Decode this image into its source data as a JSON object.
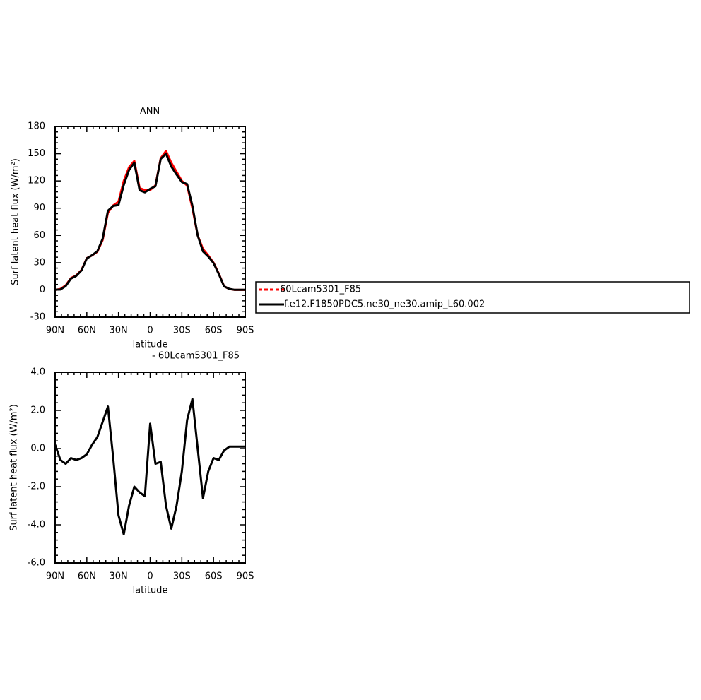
{
  "chart_data": [
    {
      "type": "line",
      "title": "ANN",
      "xlabel": "latitude",
      "ylabel": "Surf latent heat flux (W/m²)",
      "x": [
        90,
        85,
        80,
        75,
        70,
        65,
        60,
        55,
        50,
        45,
        40,
        35,
        30,
        25,
        20,
        15,
        10,
        5,
        0,
        -5,
        -10,
        -15,
        -20,
        -25,
        -30,
        -35,
        -40,
        -45,
        -50,
        -55,
        -60,
        -65,
        -70,
        -75,
        -80,
        -85,
        -90
      ],
      "series": [
        {
          "name": "60Lcam5301_F85",
          "color": "#ff0000",
          "values": [
            0,
            1,
            5,
            13,
            16,
            22,
            35,
            38,
            42,
            55,
            85,
            93,
            97,
            120,
            135,
            142,
            112,
            110,
            110,
            115,
            145,
            153,
            140,
            130,
            120,
            115,
            90,
            60,
            45,
            38,
            30,
            18,
            4,
            1,
            0,
            0,
            0
          ]
        },
        {
          "name": "f.e12.F1850PDC5.ne30_ne30.amip_L60.002",
          "color": "#000000",
          "values": [
            0.2,
            0.4,
            4.2,
            12.5,
            15.4,
            21.5,
            34.7,
            38.2,
            42.6,
            56.4,
            87.2,
            92.5,
            93.5,
            115.5,
            132,
            140,
            109.7,
            107.5,
            111.3,
            114.2,
            144.3,
            150,
            135.8,
            127,
            118.8,
            116.5,
            92.6,
            60,
            42.4,
            36.8,
            29.5,
            17.4,
            3.9,
            1.1,
            0.1,
            0.1,
            0.1
          ]
        }
      ],
      "xlim": [
        90,
        -90
      ],
      "xticks": [
        {
          "value": 90,
          "label": "90N"
        },
        {
          "value": 60,
          "label": "60N"
        },
        {
          "value": 30,
          "label": "30N"
        },
        0,
        {
          "value": -30,
          "label": "30S"
        },
        {
          "value": -60,
          "label": "60S"
        },
        {
          "value": -90,
          "label": "90S"
        }
      ],
      "ylim": [
        -30,
        180
      ],
      "yticks": [
        -30,
        0,
        30,
        60,
        90,
        120,
        150,
        180
      ]
    },
    {
      "type": "line",
      "title": "- 60Lcam5301_F85",
      "xlabel": "latitude",
      "ylabel": "Surf latent heat flux (W/m²)",
      "x": [
        90,
        85,
        80,
        75,
        70,
        65,
        60,
        55,
        50,
        45,
        40,
        35,
        30,
        25,
        20,
        15,
        10,
        5,
        0,
        -5,
        -10,
        -15,
        -20,
        -25,
        -30,
        -35,
        -40,
        -45,
        -50,
        -55,
        -60,
        -65,
        -70,
        -75,
        -80,
        -85,
        -90
      ],
      "series": [
        {
          "color": "#000000",
          "values": [
            0.2,
            -0.6,
            -0.8,
            -0.5,
            -0.6,
            -0.5,
            -0.3,
            0.2,
            0.6,
            1.4,
            2.2,
            -0.5,
            -3.5,
            -4.5,
            -3.0,
            -2.0,
            -2.3,
            -2.5,
            1.3,
            -0.8,
            -0.7,
            -3.0,
            -4.2,
            -3.0,
            -1.2,
            1.5,
            2.6,
            0.0,
            -2.6,
            -1.2,
            -0.5,
            -0.6,
            -0.1,
            0.1,
            0.1,
            0.1,
            0.1
          ]
        }
      ],
      "xlim": [
        90,
        -90
      ],
      "xticks": [
        {
          "value": 90,
          "label": "90N"
        },
        {
          "value": 60,
          "label": "60N"
        },
        {
          "value": 30,
          "label": "30N"
        },
        0,
        {
          "value": -30,
          "label": "30S"
        },
        {
          "value": -60,
          "label": "60S"
        },
        {
          "value": -90,
          "label": "90S"
        }
      ],
      "ylim": [
        -6,
        4
      ],
      "yticks": [
        {
          "value": -6,
          "label": "-6.0"
        },
        {
          "value": -4,
          "label": "-4.0"
        },
        {
          "value": -2,
          "label": "-2.0"
        },
        {
          "value": 0,
          "label": "0.0"
        },
        {
          "value": 2,
          "label": "2.0"
        },
        {
          "value": 4,
          "label": "4.0"
        }
      ]
    }
  ]
}
